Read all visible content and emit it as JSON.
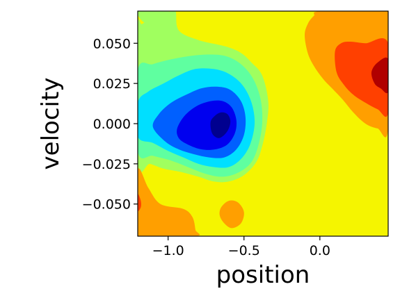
{
  "chart_data": {
    "type": "contour",
    "xlabel": "position",
    "ylabel": "velocity",
    "xlim": [
      -1.2,
      0.45
    ],
    "ylim": [
      -0.07,
      0.07
    ],
    "xticks": [
      {
        "value": -1.0,
        "label": "−1.0"
      },
      {
        "value": -0.5,
        "label": "−0.5"
      },
      {
        "value": 0.0,
        "label": "0.0"
      }
    ],
    "yticks": [
      {
        "value": 0.05,
        "label": "0.050"
      },
      {
        "value": 0.025,
        "label": "0.025"
      },
      {
        "value": 0.0,
        "label": "0.000"
      },
      {
        "value": -0.025,
        "label": "−0.025"
      },
      {
        "value": -0.05,
        "label": "−0.050"
      }
    ],
    "colormap": "jet",
    "level_colors": [
      "#00008f",
      "#0000ef",
      "#0060ff",
      "#00dfff",
      "#5fffa0",
      "#a0ff5f",
      "#f5f500",
      "#ff9f00",
      "#ff4000",
      "#b00000"
    ],
    "background_level_color": "#f5f500",
    "grid": false,
    "regions": [
      {
        "name": "light-green-region",
        "color": "#a0ff5f",
        "points": [
          [
            -1.2,
            0.058
          ],
          [
            -1.17,
            0.062
          ],
          [
            -1.08,
            0.066
          ],
          [
            -0.98,
            0.07
          ],
          [
            -0.95,
            0.07
          ],
          [
            -0.93,
            0.058
          ],
          [
            -0.8,
            0.052
          ],
          [
            -0.62,
            0.048
          ],
          [
            -0.52,
            0.044
          ],
          [
            -0.45,
            0.038
          ],
          [
            -0.38,
            0.03
          ],
          [
            -0.34,
            0.014
          ],
          [
            -0.35,
            0.0
          ],
          [
            -0.38,
            -0.014
          ],
          [
            -0.42,
            -0.024
          ],
          [
            -0.5,
            -0.032
          ],
          [
            -0.6,
            -0.036
          ],
          [
            -0.7,
            -0.036
          ],
          [
            -0.8,
            -0.033
          ],
          [
            -0.92,
            -0.03
          ],
          [
            -1.03,
            -0.028
          ],
          [
            -1.12,
            -0.025
          ],
          [
            -1.2,
            -0.024
          ]
        ]
      },
      {
        "name": "aqua-green-region",
        "color": "#5fffa0",
        "points": [
          [
            -1.2,
            0.033
          ],
          [
            -1.1,
            0.037
          ],
          [
            -0.98,
            0.04
          ],
          [
            -0.86,
            0.042
          ],
          [
            -0.74,
            0.043
          ],
          [
            -0.62,
            0.042
          ],
          [
            -0.52,
            0.037
          ],
          [
            -0.44,
            0.028
          ],
          [
            -0.39,
            0.015
          ],
          [
            -0.38,
            0.0
          ],
          [
            -0.41,
            -0.015
          ],
          [
            -0.46,
            -0.025
          ],
          [
            -0.55,
            -0.031
          ],
          [
            -0.65,
            -0.033
          ],
          [
            -0.76,
            -0.031
          ],
          [
            -0.87,
            -0.027
          ],
          [
            -0.98,
            -0.023
          ],
          [
            -1.1,
            -0.02
          ],
          [
            -1.2,
            -0.017
          ]
        ]
      },
      {
        "name": "cyan-region",
        "color": "#00dfff",
        "points": [
          [
            -1.2,
            0.013
          ],
          [
            -1.13,
            0.02
          ],
          [
            -1.03,
            0.025
          ],
          [
            -0.93,
            0.03
          ],
          [
            -0.82,
            0.034
          ],
          [
            -0.7,
            0.034
          ],
          [
            -0.6,
            0.031
          ],
          [
            -0.51,
            0.024
          ],
          [
            -0.45,
            0.013
          ],
          [
            -0.43,
            0.0
          ],
          [
            -0.46,
            -0.013
          ],
          [
            -0.52,
            -0.022
          ],
          [
            -0.6,
            -0.027
          ],
          [
            -0.7,
            -0.027
          ],
          [
            -0.8,
            -0.025
          ],
          [
            -0.9,
            -0.021
          ],
          [
            -1.0,
            -0.017
          ],
          [
            -1.1,
            -0.012
          ],
          [
            -1.2,
            -0.008
          ]
        ]
      },
      {
        "name": "azure-region",
        "color": "#0060ff",
        "points": [
          [
            -1.1,
            -0.002
          ],
          [
            -1.06,
            0.006
          ],
          [
            -0.98,
            0.013
          ],
          [
            -0.88,
            0.018
          ],
          [
            -0.78,
            0.022
          ],
          [
            -0.68,
            0.023
          ],
          [
            -0.59,
            0.021
          ],
          [
            -0.52,
            0.014
          ],
          [
            -0.49,
            0.004
          ],
          [
            -0.5,
            -0.007
          ],
          [
            -0.55,
            -0.016
          ],
          [
            -0.63,
            -0.021
          ],
          [
            -0.73,
            -0.021
          ],
          [
            -0.83,
            -0.019
          ],
          [
            -0.93,
            -0.016
          ],
          [
            -1.02,
            -0.011
          ]
        ]
      },
      {
        "name": "blue-region",
        "color": "#0000ef",
        "points": [
          [
            -0.94,
            -0.003
          ],
          [
            -0.89,
            0.005
          ],
          [
            -0.81,
            0.011
          ],
          [
            -0.72,
            0.014
          ],
          [
            -0.64,
            0.014
          ],
          [
            -0.58,
            0.01
          ],
          [
            -0.55,
            0.002
          ],
          [
            -0.56,
            -0.006
          ],
          [
            -0.61,
            -0.013
          ],
          [
            -0.69,
            -0.016
          ],
          [
            -0.78,
            -0.016
          ],
          [
            -0.87,
            -0.013
          ],
          [
            -0.93,
            -0.009
          ]
        ]
      },
      {
        "name": "navy-region",
        "color": "#00008f",
        "points": [
          [
            -0.72,
            0.001
          ],
          [
            -0.69,
            0.005
          ],
          [
            -0.65,
            0.007
          ],
          [
            -0.61,
            0.006
          ],
          [
            -0.59,
            0.002
          ],
          [
            -0.6,
            -0.003
          ],
          [
            -0.63,
            -0.007
          ],
          [
            -0.67,
            -0.009
          ],
          [
            -0.71,
            -0.006
          ]
        ]
      },
      {
        "name": "top-left-green-region",
        "color": "#a0ff5f",
        "points": [
          [
            -1.19,
            0.07
          ],
          [
            -1.0,
            0.07
          ],
          [
            -1.01,
            0.064
          ],
          [
            -1.06,
            0.061
          ],
          [
            -1.14,
            0.062
          ],
          [
            -1.19,
            0.066
          ]
        ]
      },
      {
        "name": "top-right-orange-region",
        "color": "#ff9f00",
        "points": [
          [
            -0.1,
            0.055
          ],
          [
            -0.08,
            0.062
          ],
          [
            -0.04,
            0.067
          ],
          [
            0.01,
            0.07
          ],
          [
            0.45,
            0.07
          ],
          [
            0.45,
            -0.003
          ],
          [
            0.38,
            -0.003
          ],
          [
            0.3,
            0.0
          ],
          [
            0.22,
            0.007
          ],
          [
            0.15,
            0.015
          ],
          [
            0.08,
            0.022
          ],
          [
            0.02,
            0.028
          ],
          [
            -0.04,
            0.036
          ],
          [
            -0.08,
            0.044
          ]
        ]
      },
      {
        "name": "top-right-red-region",
        "color": "#ff4000",
        "points": [
          [
            0.1,
            0.045
          ],
          [
            0.14,
            0.05
          ],
          [
            0.2,
            0.051
          ],
          [
            0.3,
            0.05
          ],
          [
            0.45,
            0.05
          ],
          [
            0.45,
            0.007
          ],
          [
            0.38,
            0.009
          ],
          [
            0.3,
            0.013
          ],
          [
            0.22,
            0.018
          ],
          [
            0.16,
            0.024
          ],
          [
            0.11,
            0.032
          ]
        ]
      },
      {
        "name": "top-right-darkred-region",
        "color": "#b00000",
        "points": [
          [
            0.34,
            0.032
          ],
          [
            0.38,
            0.038
          ],
          [
            0.45,
            0.04
          ],
          [
            0.45,
            0.02
          ],
          [
            0.4,
            0.022
          ],
          [
            0.36,
            0.025
          ]
        ]
      },
      {
        "name": "bottom-left-orange-region",
        "color": "#ff9f00",
        "points": [
          [
            -1.2,
            -0.029
          ],
          [
            -1.13,
            -0.04
          ],
          [
            -1.05,
            -0.05
          ],
          [
            -0.9,
            -0.053
          ],
          [
            -0.84,
            -0.058
          ],
          [
            -0.82,
            -0.066
          ],
          [
            -0.82,
            -0.07
          ],
          [
            -1.2,
            -0.07
          ]
        ]
      },
      {
        "name": "bottom-left-red-region",
        "color": "#ff4000",
        "points": [
          [
            -1.2,
            -0.044
          ],
          [
            -1.18,
            -0.048
          ],
          [
            -1.18,
            -0.052
          ],
          [
            -1.2,
            -0.054
          ]
        ]
      },
      {
        "name": "bottom-small-orange-region",
        "color": "#ff9f00",
        "points": [
          [
            -0.65,
            -0.052
          ],
          [
            -0.6,
            -0.048
          ],
          [
            -0.54,
            -0.049
          ],
          [
            -0.5,
            -0.055
          ],
          [
            -0.52,
            -0.062
          ],
          [
            -0.58,
            -0.065
          ],
          [
            -0.63,
            -0.062
          ],
          [
            -0.66,
            -0.057
          ]
        ]
      }
    ]
  }
}
